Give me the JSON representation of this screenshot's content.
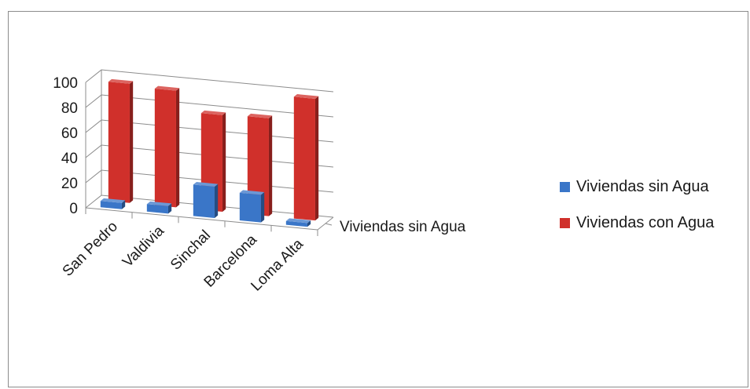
{
  "chart_data": {
    "type": "bar",
    "subtype": "3d-column",
    "categories": [
      "San Pedro",
      "Valdivia",
      "Sinchal",
      "Barcelona",
      "Loma Alta"
    ],
    "series": [
      {
        "name": "Viviendas sin Agua",
        "color": "#3a76c8",
        "values": [
          5,
          6,
          25,
          22,
          3
        ]
      },
      {
        "name": "Viviendas con Agua",
        "color": "#d0302b",
        "values": [
          95,
          93,
          77,
          78,
          97
        ]
      }
    ],
    "ylim": [
      0,
      100
    ],
    "y_ticks": [
      "0",
      "20",
      "40",
      "60",
      "80",
      "100"
    ],
    "depth_axis_labels": [
      "Viviendas sin Agua"
    ],
    "legend_position": "right",
    "grid": true
  }
}
